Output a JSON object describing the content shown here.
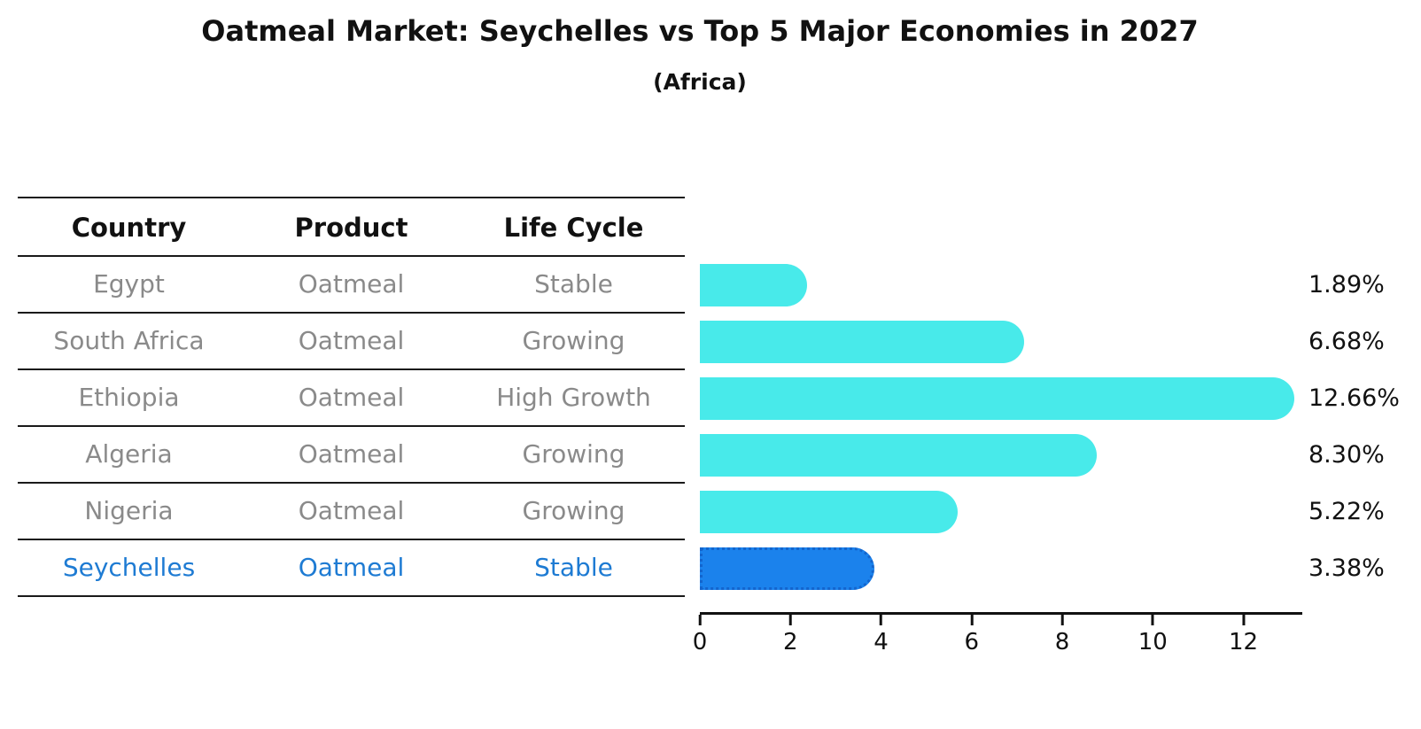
{
  "title": "Oatmeal Market: Seychelles vs Top 5 Major Economies in 2027",
  "subtitle": "(Africa)",
  "table": {
    "columns": [
      "Country",
      "Product",
      "Life Cycle"
    ],
    "rows": [
      {
        "country": "Egypt",
        "product": "Oatmeal",
        "life_cycle": "Stable",
        "highlight": false
      },
      {
        "country": "South Africa",
        "product": "Oatmeal",
        "life_cycle": "Growing",
        "highlight": false
      },
      {
        "country": "Ethiopia",
        "product": "Oatmeal",
        "life_cycle": "High Growth",
        "highlight": false
      },
      {
        "country": "Algeria",
        "product": "Oatmeal",
        "life_cycle": "Growing",
        "highlight": false
      },
      {
        "country": "Nigeria",
        "product": "Oatmeal",
        "life_cycle": "Growing",
        "highlight": false
      },
      {
        "country": "Seychelles",
        "product": "Oatmeal",
        "life_cycle": "Stable",
        "highlight": true
      }
    ]
  },
  "chart_data": {
    "type": "bar",
    "orientation": "horizontal",
    "title": "Oatmeal Market: Seychelles vs Top 5 Major Economies in 2027",
    "subtitle": "(Africa)",
    "categories": [
      "Egypt",
      "South Africa",
      "Ethiopia",
      "Algeria",
      "Nigeria",
      "Seychelles"
    ],
    "values": [
      1.89,
      6.68,
      12.66,
      8.3,
      5.22,
      3.38
    ],
    "value_labels": [
      "1.89%",
      "6.68%",
      "12.66%",
      "8.30%",
      "5.22%",
      "3.38%"
    ],
    "x_ticks": [
      0,
      2,
      4,
      6,
      8,
      10,
      12
    ],
    "xlim": [
      0,
      13.3
    ],
    "grid": false,
    "legend": "none",
    "highlight_index": 5,
    "bar_color": "#48EAEA",
    "highlight_color": "#1B82EC",
    "highlight_border_color": "#1365CD",
    "highlight_text_color": "#1E7BD3",
    "muted_text_color": "#8A8A8A",
    "axis_color": "#111111"
  }
}
